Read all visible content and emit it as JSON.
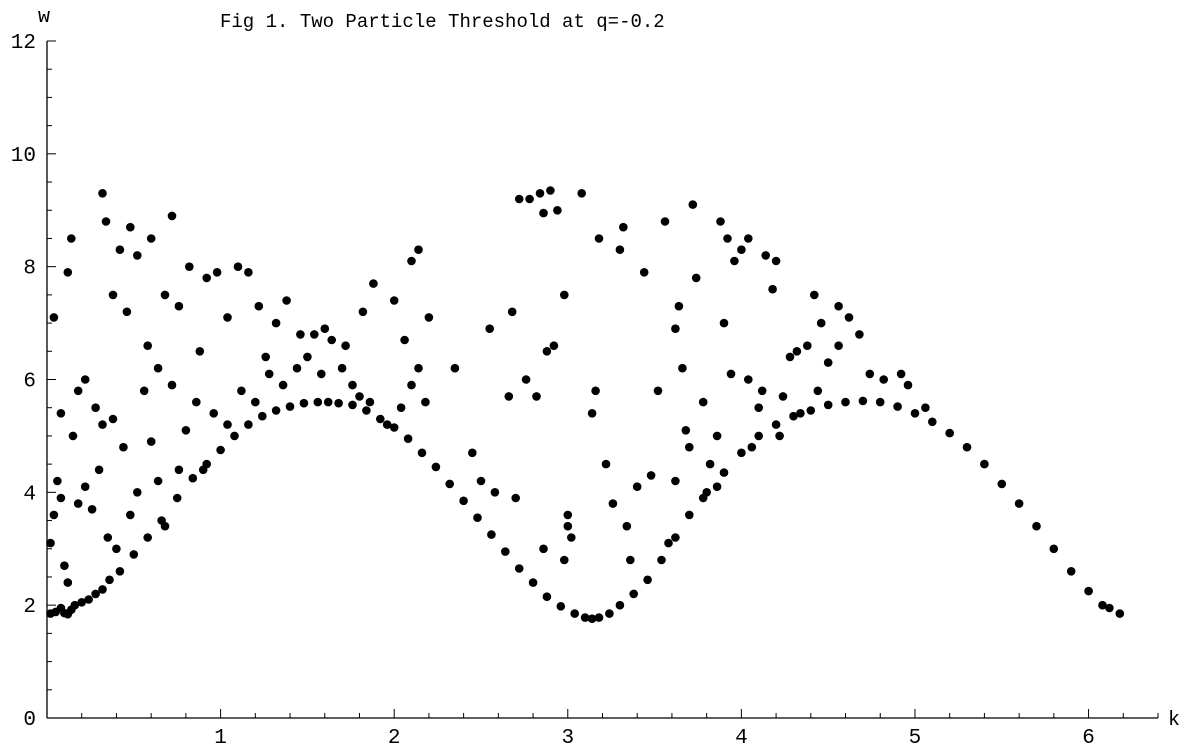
{
  "chart_data": {
    "type": "scatter",
    "title": "Fig 1. Two Particle Threshold at q=-0.2",
    "xlabel": "k",
    "ylabel": "w",
    "xlim": [
      0,
      6.4
    ],
    "ylim": [
      0,
      12
    ],
    "x_ticks": [
      "1",
      "2",
      "3",
      "4",
      "5",
      "6"
    ],
    "x_tick_values": [
      1,
      2,
      3,
      4,
      5,
      6
    ],
    "y_ticks": [
      "0",
      "2",
      "4",
      "6",
      "8",
      "10",
      "12"
    ],
    "y_tick_values": [
      0,
      2,
      4,
      6,
      8,
      10,
      12
    ],
    "grid": false,
    "point_color": "#000000",
    "series": [
      {
        "values": [
          [
            0.02,
            1.85
          ],
          [
            0.05,
            1.88
          ],
          [
            0.08,
            1.95
          ],
          [
            0.1,
            1.86
          ],
          [
            0.12,
            1.84
          ],
          [
            0.14,
            1.92
          ],
          [
            0.16,
            2.0
          ],
          [
            0.2,
            2.05
          ],
          [
            0.24,
            2.1
          ],
          [
            0.28,
            2.2
          ],
          [
            0.32,
            2.28
          ],
          [
            0.36,
            2.45
          ],
          [
            0.42,
            2.6
          ],
          [
            0.5,
            2.9
          ],
          [
            0.58,
            3.2
          ],
          [
            0.66,
            3.5
          ],
          [
            0.75,
            3.9
          ],
          [
            0.84,
            4.25
          ],
          [
            0.92,
            4.5
          ],
          [
            1.0,
            4.75
          ],
          [
            1.08,
            5.0
          ],
          [
            1.16,
            5.2
          ],
          [
            1.24,
            5.35
          ],
          [
            1.32,
            5.45
          ],
          [
            1.4,
            5.52
          ],
          [
            1.48,
            5.58
          ],
          [
            1.56,
            5.6
          ],
          [
            1.62,
            5.6
          ],
          [
            1.68,
            5.58
          ],
          [
            1.76,
            5.55
          ],
          [
            1.84,
            5.45
          ],
          [
            1.92,
            5.3
          ],
          [
            2.0,
            5.15
          ],
          [
            2.08,
            4.95
          ],
          [
            2.16,
            4.7
          ],
          [
            2.24,
            4.45
          ],
          [
            2.32,
            4.15
          ],
          [
            2.4,
            3.85
          ],
          [
            2.48,
            3.55
          ],
          [
            2.56,
            3.25
          ],
          [
            2.64,
            2.95
          ],
          [
            2.72,
            2.65
          ],
          [
            2.8,
            2.4
          ],
          [
            2.88,
            2.15
          ],
          [
            2.96,
            1.98
          ],
          [
            3.04,
            1.85
          ],
          [
            3.1,
            1.78
          ],
          [
            3.14,
            1.76
          ],
          [
            3.18,
            1.78
          ],
          [
            3.24,
            1.85
          ],
          [
            3.3,
            2.0
          ],
          [
            3.38,
            2.2
          ],
          [
            3.46,
            2.45
          ],
          [
            3.54,
            2.8
          ],
          [
            3.62,
            3.2
          ],
          [
            3.7,
            3.6
          ],
          [
            3.8,
            4.0
          ],
          [
            3.9,
            4.35
          ],
          [
            4.0,
            4.7
          ],
          [
            4.1,
            5.0
          ],
          [
            4.2,
            5.2
          ],
          [
            4.3,
            5.35
          ],
          [
            4.4,
            5.45
          ],
          [
            4.5,
            5.55
          ],
          [
            4.6,
            5.6
          ],
          [
            4.7,
            5.62
          ],
          [
            4.8,
            5.6
          ],
          [
            4.9,
            5.52
          ],
          [
            5.0,
            5.4
          ],
          [
            5.1,
            5.25
          ],
          [
            5.2,
            5.05
          ],
          [
            5.3,
            4.8
          ],
          [
            5.4,
            4.5
          ],
          [
            5.5,
            4.15
          ],
          [
            5.6,
            3.8
          ],
          [
            5.7,
            3.4
          ],
          [
            5.8,
            3.0
          ],
          [
            5.9,
            2.6
          ],
          [
            6.0,
            2.25
          ],
          [
            6.08,
            2.0
          ],
          [
            6.12,
            1.95
          ],
          [
            6.18,
            1.85
          ],
          [
            0.02,
            3.1
          ],
          [
            0.04,
            3.6
          ],
          [
            0.06,
            4.2
          ],
          [
            0.08,
            3.9
          ],
          [
            0.1,
            2.7
          ],
          [
            0.12,
            2.4
          ],
          [
            0.15,
            5.0
          ],
          [
            0.18,
            3.8
          ],
          [
            0.22,
            4.1
          ],
          [
            0.26,
            3.7
          ],
          [
            0.3,
            4.4
          ],
          [
            0.32,
            5.2
          ],
          [
            0.35,
            3.2
          ],
          [
            0.38,
            5.3
          ],
          [
            0.4,
            3.0
          ],
          [
            0.44,
            4.8
          ],
          [
            0.48,
            3.6
          ],
          [
            0.52,
            4.0
          ],
          [
            0.56,
            5.8
          ],
          [
            0.6,
            4.9
          ],
          [
            0.64,
            4.2
          ],
          [
            0.68,
            3.4
          ],
          [
            0.72,
            5.9
          ],
          [
            0.76,
            4.4
          ],
          [
            0.8,
            5.1
          ],
          [
            0.86,
            5.6
          ],
          [
            0.9,
            4.4
          ],
          [
            0.96,
            5.4
          ],
          [
            1.04,
            5.2
          ],
          [
            1.12,
            5.8
          ],
          [
            1.2,
            5.6
          ],
          [
            1.28,
            6.1
          ],
          [
            1.36,
            5.9
          ],
          [
            1.44,
            6.2
          ],
          [
            1.5,
            6.4
          ],
          [
            1.54,
            6.8
          ],
          [
            1.58,
            6.1
          ],
          [
            1.64,
            6.7
          ],
          [
            1.7,
            6.2
          ],
          [
            1.76,
            5.9
          ],
          [
            1.8,
            5.7
          ],
          [
            1.86,
            5.6
          ],
          [
            1.96,
            5.2
          ],
          [
            2.04,
            5.5
          ],
          [
            2.1,
            5.9
          ],
          [
            2.14,
            6.2
          ],
          [
            0.04,
            7.1
          ],
          [
            0.08,
            5.4
          ],
          [
            0.12,
            7.9
          ],
          [
            0.14,
            8.5
          ],
          [
            0.18,
            5.8
          ],
          [
            0.22,
            6.0
          ],
          [
            0.28,
            5.5
          ],
          [
            0.32,
            9.3
          ],
          [
            0.34,
            8.8
          ],
          [
            0.38,
            7.5
          ],
          [
            0.42,
            8.3
          ],
          [
            0.46,
            7.2
          ],
          [
            0.48,
            8.7
          ],
          [
            0.52,
            8.2
          ],
          [
            0.58,
            6.6
          ],
          [
            0.6,
            8.5
          ],
          [
            0.64,
            6.2
          ],
          [
            0.68,
            7.5
          ],
          [
            0.72,
            8.9
          ],
          [
            0.76,
            7.3
          ],
          [
            0.82,
            8.0
          ],
          [
            0.88,
            6.5
          ],
          [
            0.92,
            7.8
          ],
          [
            0.98,
            7.9
          ],
          [
            1.04,
            7.1
          ],
          [
            1.1,
            8.0
          ],
          [
            1.16,
            7.9
          ],
          [
            1.22,
            7.3
          ],
          [
            1.26,
            6.4
          ],
          [
            1.32,
            7.0
          ],
          [
            1.38,
            7.4
          ],
          [
            1.46,
            6.8
          ],
          [
            1.6,
            6.9
          ],
          [
            1.72,
            6.6
          ],
          [
            1.82,
            7.2
          ],
          [
            1.88,
            7.7
          ],
          [
            2.0,
            7.4
          ],
          [
            2.06,
            6.7
          ],
          [
            2.1,
            8.1
          ],
          [
            2.14,
            8.3
          ],
          [
            2.2,
            7.1
          ],
          [
            2.18,
            5.6
          ],
          [
            2.35,
            6.2
          ],
          [
            2.55,
            6.9
          ],
          [
            2.68,
            7.2
          ],
          [
            2.72,
            9.2
          ],
          [
            2.78,
            9.2
          ],
          [
            2.84,
            9.3
          ],
          [
            2.86,
            8.95
          ],
          [
            2.9,
            9.35
          ],
          [
            2.94,
            9.0
          ],
          [
            2.98,
            7.5
          ],
          [
            2.82,
            5.7
          ],
          [
            2.88,
            6.5
          ],
          [
            2.92,
            6.6
          ],
          [
            3.0,
            3.6
          ],
          [
            3.0,
            3.4
          ],
          [
            3.02,
            3.2
          ],
          [
            2.98,
            2.8
          ],
          [
            2.86,
            3.0
          ],
          [
            2.7,
            3.9
          ],
          [
            2.66,
            5.7
          ],
          [
            2.76,
            6.0
          ],
          [
            2.58,
            4.0
          ],
          [
            2.5,
            4.2
          ],
          [
            2.45,
            4.7
          ],
          [
            3.08,
            9.3
          ],
          [
            3.14,
            5.4
          ],
          [
            3.16,
            5.8
          ],
          [
            3.18,
            8.5
          ],
          [
            3.22,
            4.5
          ],
          [
            3.26,
            3.8
          ],
          [
            3.3,
            8.3
          ],
          [
            3.32,
            8.7
          ],
          [
            3.34,
            3.4
          ],
          [
            3.36,
            2.8
          ],
          [
            3.4,
            4.1
          ],
          [
            3.44,
            7.9
          ],
          [
            3.48,
            4.3
          ],
          [
            3.52,
            5.8
          ],
          [
            3.56,
            8.8
          ],
          [
            3.58,
            3.1
          ],
          [
            3.62,
            6.9
          ],
          [
            3.64,
            7.3
          ],
          [
            3.66,
            6.2
          ],
          [
            3.68,
            5.1
          ],
          [
            3.72,
            9.1
          ],
          [
            3.74,
            7.8
          ],
          [
            3.78,
            3.9
          ],
          [
            3.82,
            4.5
          ],
          [
            3.86,
            5.0
          ],
          [
            3.88,
            8.8
          ],
          [
            3.9,
            7.0
          ],
          [
            3.92,
            8.5
          ],
          [
            3.96,
            8.1
          ],
          [
            4.0,
            8.3
          ],
          [
            4.04,
            8.5
          ],
          [
            4.06,
            4.8
          ],
          [
            4.1,
            5.5
          ],
          [
            4.14,
            8.2
          ],
          [
            4.18,
            7.6
          ],
          [
            4.2,
            8.1
          ],
          [
            4.24,
            5.7
          ],
          [
            4.28,
            6.4
          ],
          [
            4.32,
            6.5
          ],
          [
            4.38,
            6.6
          ],
          [
            4.42,
            7.5
          ],
          [
            4.46,
            7.0
          ],
          [
            4.5,
            6.3
          ],
          [
            4.56,
            7.3
          ],
          [
            4.62,
            7.1
          ],
          [
            4.68,
            6.8
          ],
          [
            4.74,
            6.1
          ],
          [
            4.82,
            6.0
          ],
          [
            4.92,
            6.1
          ],
          [
            4.96,
            5.9
          ],
          [
            5.06,
            5.5
          ],
          [
            3.62,
            4.2
          ],
          [
            3.7,
            4.8
          ],
          [
            3.78,
            5.6
          ],
          [
            3.86,
            4.1
          ],
          [
            3.94,
            6.1
          ],
          [
            4.04,
            6.0
          ],
          [
            4.12,
            5.8
          ],
          [
            4.22,
            5.0
          ],
          [
            4.34,
            5.4
          ],
          [
            4.44,
            5.8
          ],
          [
            4.56,
            6.6
          ]
        ]
      }
    ]
  }
}
